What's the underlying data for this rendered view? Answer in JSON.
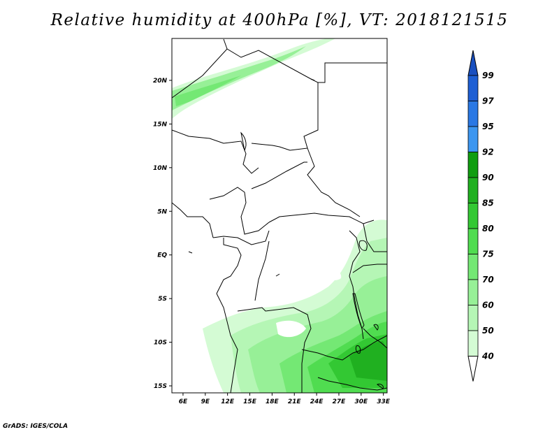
{
  "title": "Relative humidity at 400hPa [%], VT: 2018121515",
  "footer": "GrADS: IGES/COLA",
  "map": {
    "lat_labels": [
      "20N",
      "15N",
      "10N",
      "5N",
      "EQ",
      "5S",
      "10S",
      "15S"
    ],
    "lat_values": [
      20,
      15,
      10,
      5,
      0,
      -5,
      -10,
      -15
    ],
    "lon_labels": [
      "6E",
      "9E",
      "12E",
      "15E",
      "18E",
      "21E",
      "24E",
      "27E",
      "30E",
      "33E"
    ],
    "lon_values": [
      6,
      9,
      12,
      15,
      18,
      21,
      24,
      27,
      30,
      33
    ],
    "lon_range": [
      4.5,
      33.5
    ],
    "lat_range": [
      -15.8,
      24.8
    ]
  },
  "colorbar": {
    "levels": [
      "99",
      "97",
      "95",
      "92",
      "90",
      "85",
      "80",
      "75",
      "70",
      "60",
      "50",
      "40"
    ],
    "colors": [
      "#1e5fd4",
      "#2a78e4",
      "#3c96f0",
      "#0f9d0f",
      "#20b020",
      "#33c833",
      "#50dc50",
      "#74e874",
      "#97f097",
      "#b5f6b5",
      "#d4fbd4",
      "#f2fff2"
    ],
    "top_arrow_color": "#1a50c0",
    "bottom_arrow_color": "#ffffff"
  }
}
